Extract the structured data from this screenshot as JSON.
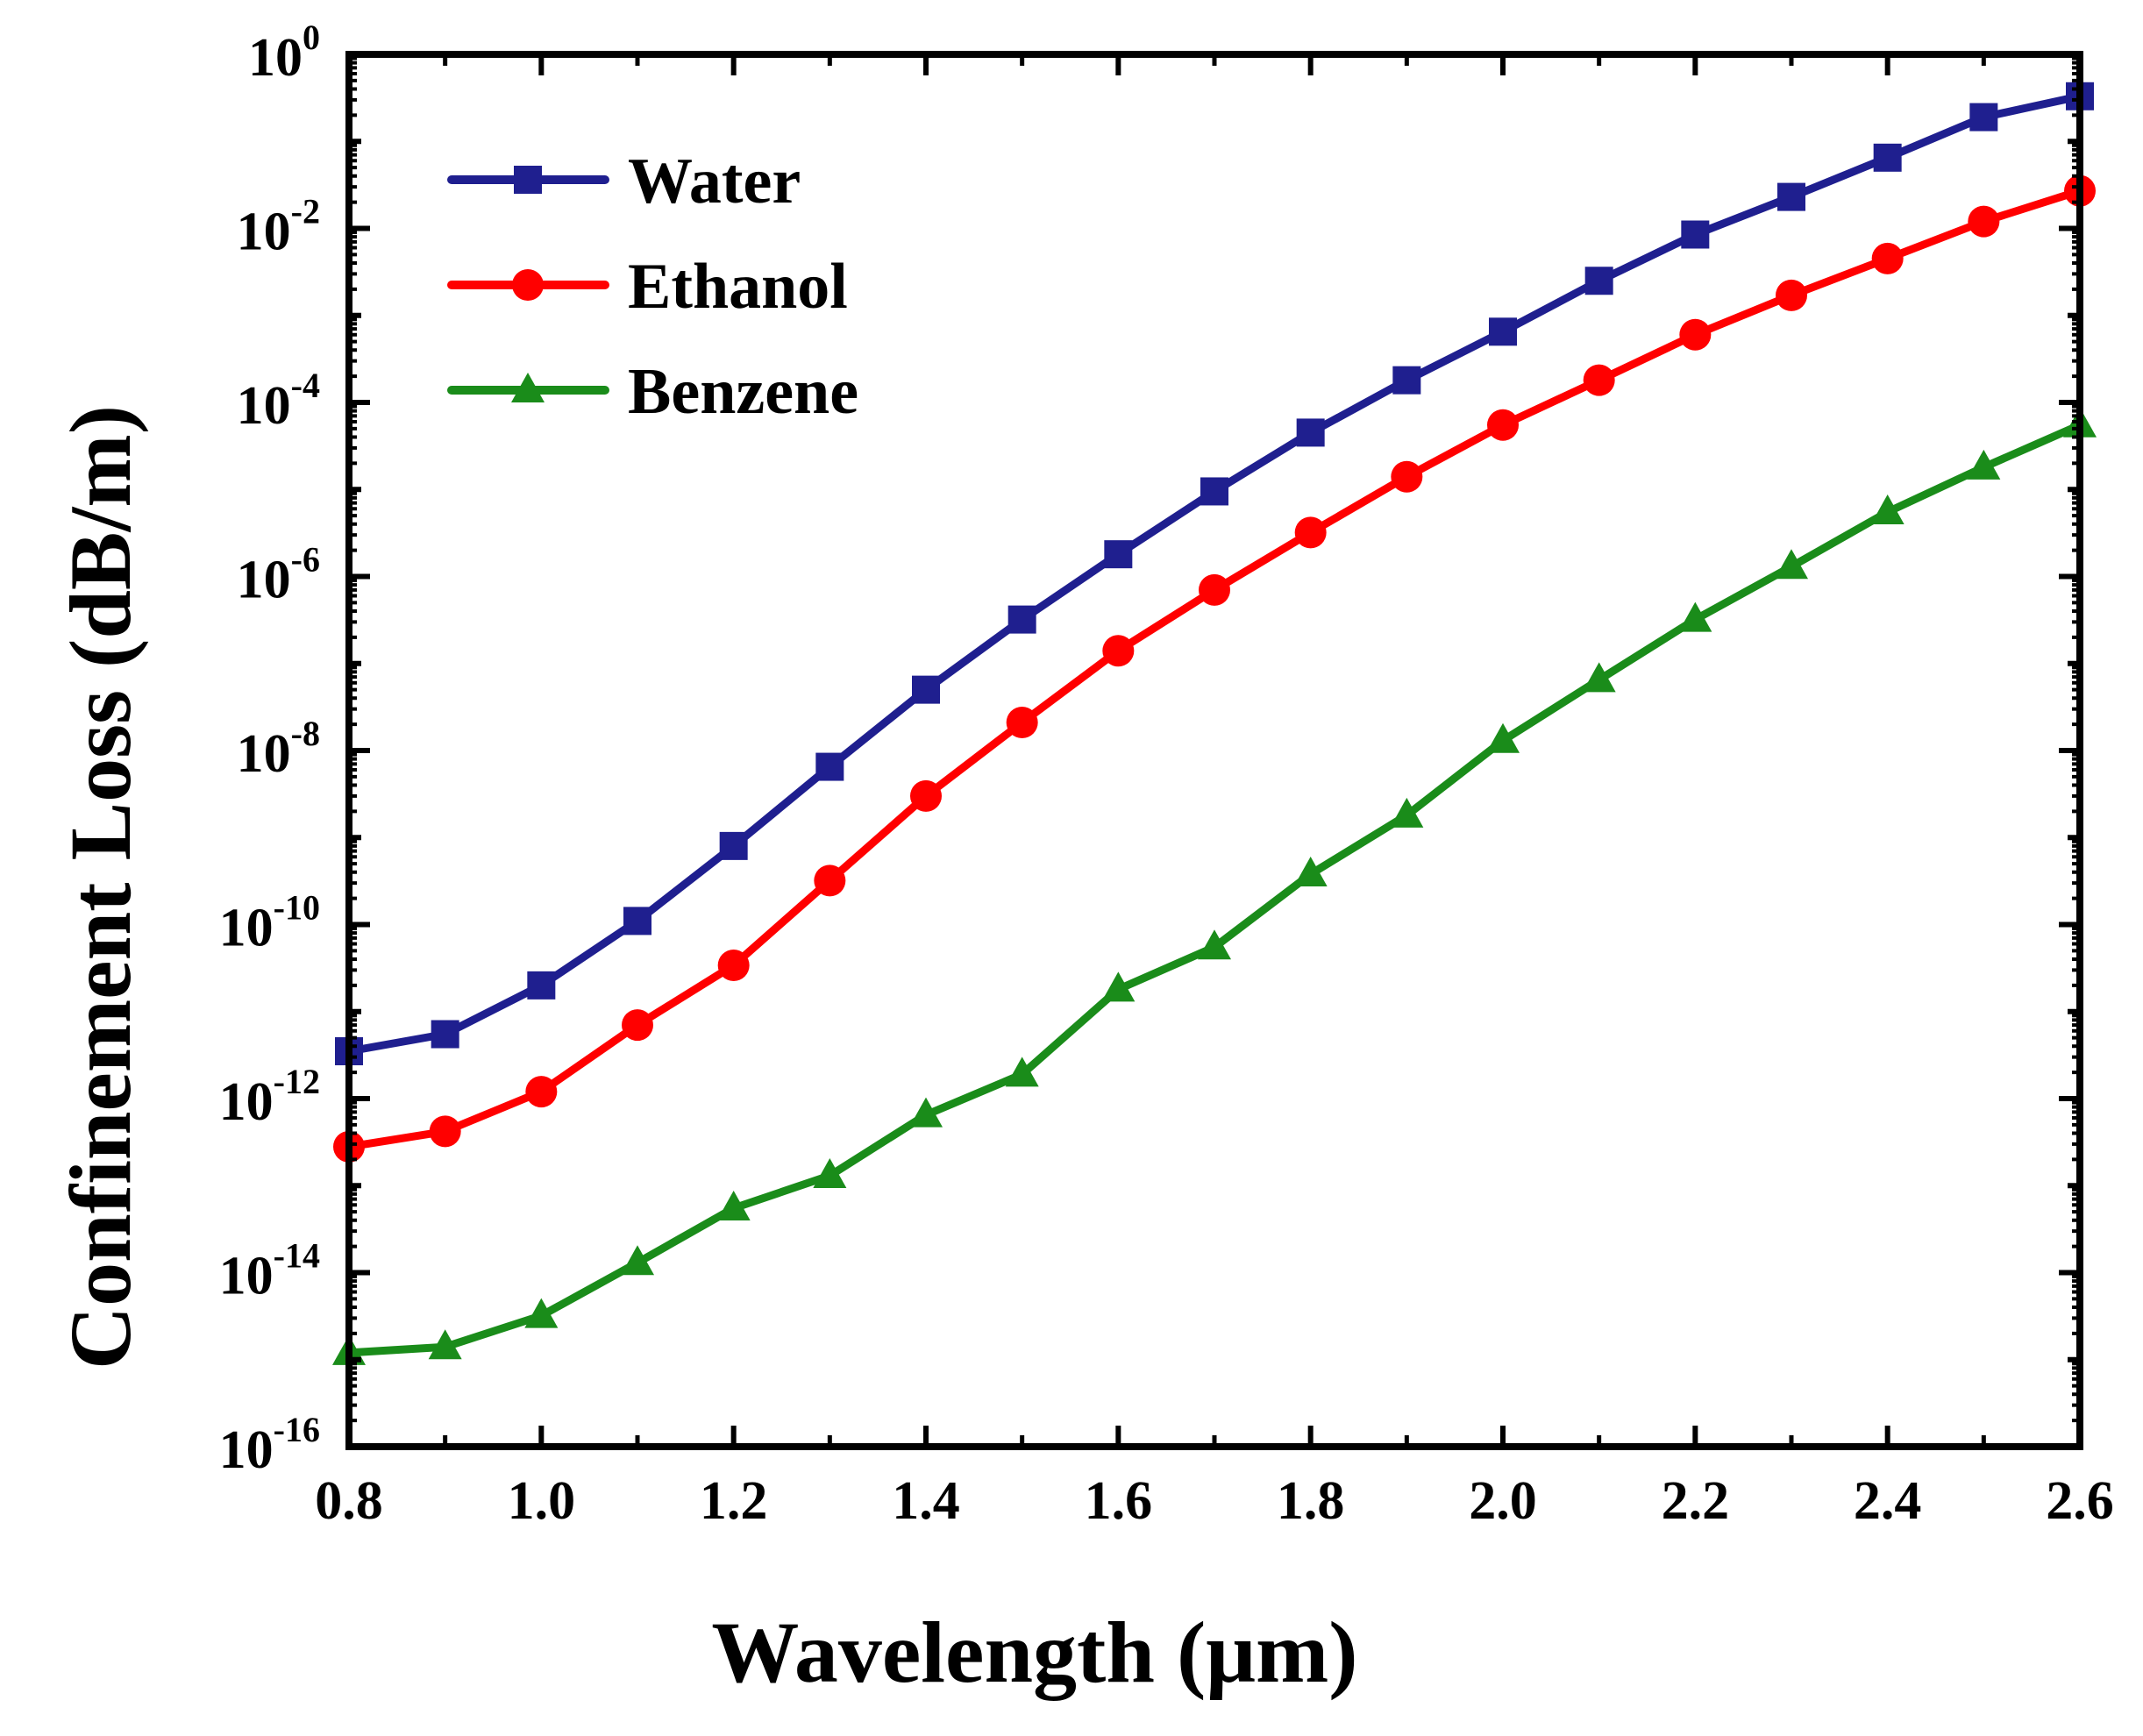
{
  "chart_data": {
    "type": "line",
    "title": "",
    "xlabel": "Wavelength (μm)",
    "ylabel": "Confinement Loss (dB/m)",
    "xlim": [
      0.8,
      2.6
    ],
    "yscale": "log",
    "ylim_exponent": [
      -16,
      0
    ],
    "x_ticks": [
      "0.8",
      "1.0",
      "1.2",
      "1.4",
      "1.6",
      "1.8",
      "2.0",
      "2.2",
      "2.4",
      "2.6"
    ],
    "y_tick_base": "10",
    "y_tick_exponents": [
      "0",
      "-2",
      "-4",
      "-6",
      "-8",
      "-10",
      "-12",
      "-14",
      "-16"
    ],
    "legend_position": "top-left",
    "x": [
      0.8,
      0.9,
      1.0,
      1.1,
      1.2,
      1.3,
      1.4,
      1.5,
      1.6,
      1.7,
      1.8,
      1.9,
      2.0,
      2.1,
      2.2,
      2.3,
      2.4,
      2.5,
      2.6
    ],
    "series": [
      {
        "name": "Water",
        "color": "#1f1f8f",
        "marker": "square",
        "values": [
          3.5e-12,
          5.5e-12,
          2e-11,
          1.1e-10,
          8e-10,
          6.5e-09,
          5e-08,
          3.2e-07,
          1.8e-06,
          9.5e-06,
          4.5e-05,
          0.00018,
          0.00065,
          0.0025,
          0.0085,
          0.023,
          0.065,
          0.19,
          0.33
        ]
      },
      {
        "name": "Ethanol",
        "color": "#ff0000",
        "marker": "circle",
        "values": [
          2.8e-13,
          4.2e-13,
          1.2e-12,
          7e-12,
          3.4e-11,
          3.2e-10,
          3e-09,
          2.1e-08,
          1.4e-07,
          7e-07,
          3.2e-06,
          1.4e-05,
          5.5e-05,
          0.00018,
          0.0006,
          0.0017,
          0.0045,
          0.012,
          0.027
        ]
      },
      {
        "name": "Benzene",
        "color": "#1a8c1a",
        "marker": "triangle",
        "values": [
          1.2e-15,
          1.4e-15,
          3.2e-15,
          1.3e-14,
          5.5e-14,
          1.3e-13,
          6.5e-13,
          1.9e-12,
          1.8e-11,
          5.5e-11,
          3.8e-10,
          1.8e-09,
          1.3e-08,
          6.5e-08,
          3.2e-07,
          1.3e-06,
          5.5e-06,
          1.8e-05,
          5.5e-05
        ]
      }
    ]
  }
}
